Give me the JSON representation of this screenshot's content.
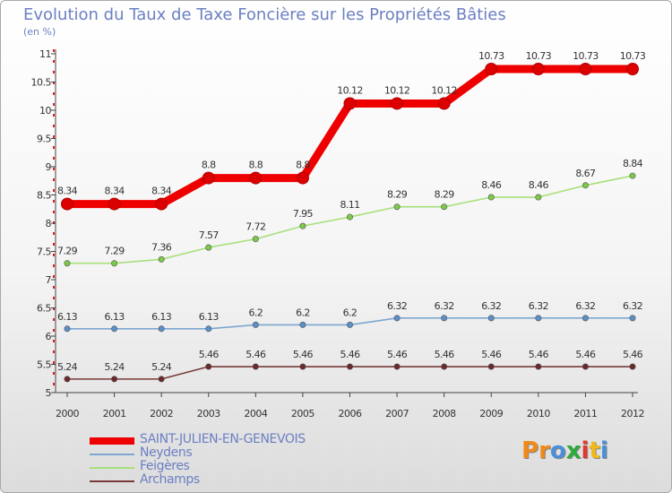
{
  "title": "Evolution du Taux de Taxe Foncière sur les Propriétés Bâties",
  "subtitle": "(en %)",
  "logo": {
    "text": "Proxiti",
    "letters": [
      "P",
      "r",
      "o",
      "x",
      "i",
      "t",
      "i"
    ],
    "colors": [
      "#f08a1a",
      "#f08a1a",
      "#4a90d9",
      "#2eaa3c",
      "#e03a2e",
      "#f0b81a",
      "#4a90d9"
    ]
  },
  "chart_data": {
    "type": "line",
    "title": "Evolution du Taux de Taxe Foncière sur les Propriétés Bâties",
    "ylabel": "(en %)",
    "xlabel": "",
    "x": [
      "2000",
      "2001",
      "2002",
      "2003",
      "2004",
      "2005",
      "2006",
      "2007",
      "2008",
      "2009",
      "2010",
      "2011",
      "2012"
    ],
    "ylim": [
      5,
      11
    ],
    "yticks": [
      "5",
      "5.5",
      "6",
      "6.5",
      "7",
      "7.5",
      "8",
      "8.5",
      "9",
      "9.5",
      "10",
      "10.5",
      "11"
    ],
    "grid": false,
    "legend_position": "bottom-left",
    "series": [
      {
        "name": "SAINT-JULIEN-EN-GENEVOIS",
        "color": "#ee0000",
        "dot": "#dd0000",
        "thick": true,
        "values": [
          8.34,
          8.34,
          8.34,
          8.8,
          8.8,
          8.8,
          10.12,
          10.12,
          10.12,
          10.73,
          10.73,
          10.73,
          10.73
        ],
        "labels": [
          "8.34",
          "8.34",
          "8.34",
          "8.8",
          "8.8",
          "8.8",
          "10.12",
          "10.12",
          "10.12",
          "10.73",
          "10.73",
          "10.73",
          "10.73"
        ]
      },
      {
        "name": "Neydens",
        "color": "#7ea6d1",
        "dot": "#5b8fc6",
        "thick": false,
        "values": [
          6.13,
          6.13,
          6.13,
          6.13,
          6.2,
          6.2,
          6.2,
          6.32,
          6.32,
          6.32,
          6.32,
          6.32,
          6.32
        ],
        "labels": [
          "6.13",
          "6.13",
          "6.13",
          "6.13",
          "6.2",
          "6.2",
          "6.2",
          "6.32",
          "6.32",
          "6.32",
          "6.32",
          "6.32",
          "6.32"
        ]
      },
      {
        "name": "Feigères",
        "color": "#a8e07a",
        "dot": "#7cc84a",
        "thick": false,
        "values": [
          7.29,
          7.29,
          7.36,
          7.57,
          7.72,
          7.95,
          8.11,
          8.29,
          8.29,
          8.46,
          8.46,
          8.67,
          8.84
        ],
        "labels": [
          "7.29",
          "7.29",
          "7.36",
          "7.57",
          "7.72",
          "7.95",
          "8.11",
          "8.29",
          "8.29",
          "8.46",
          "8.46",
          "8.67",
          "8.84"
        ]
      },
      {
        "name": "Archamps",
        "color": "#7a3a3a",
        "dot": "#6a2a2a",
        "thick": false,
        "values": [
          5.24,
          5.24,
          5.24,
          5.46,
          5.46,
          5.46,
          5.46,
          5.46,
          5.46,
          5.46,
          5.46,
          5.46,
          5.46
        ],
        "labels": [
          "5.24",
          "5.24",
          "5.24",
          "5.46",
          "5.46",
          "5.46",
          "5.46",
          "5.46",
          "5.46",
          "5.46",
          "5.46",
          "5.46",
          "5.46"
        ]
      }
    ]
  }
}
